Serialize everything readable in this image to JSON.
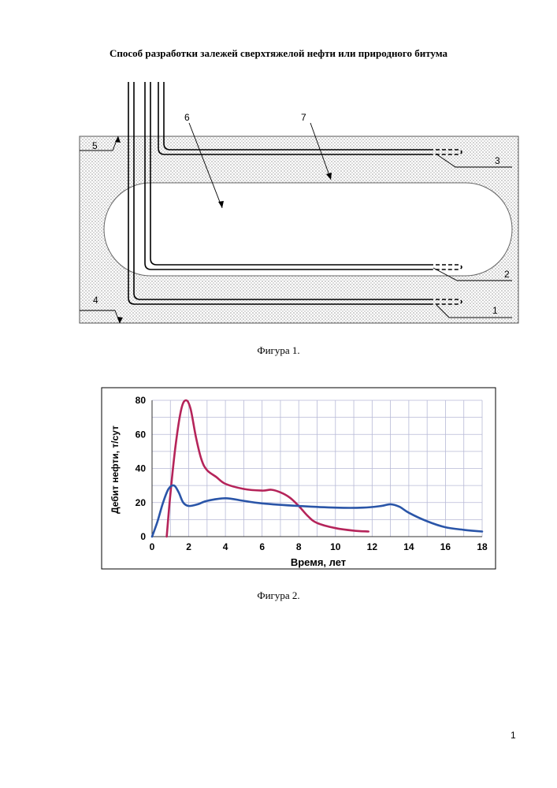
{
  "title": "Способ разработки залежей сверхтяжелой нефти или природного битума",
  "figure1": {
    "caption": "Фигура 1.",
    "labels": [
      "1",
      "2",
      "3",
      "4",
      "5",
      "6",
      "7"
    ],
    "colors": {
      "reservoir_dots": "#b8b8b8",
      "chamber": "#ffffff",
      "pipe": "#000000"
    }
  },
  "figure2": {
    "caption": "Фигура 2."
  },
  "chart_data": {
    "type": "line",
    "xlabel": "Время, лет",
    "ylabel": "Дебит нефти, т/сут",
    "xlim": [
      0,
      18
    ],
    "ylim": [
      0,
      80
    ],
    "xticks": [
      "0",
      "2",
      "4",
      "6",
      "8",
      "10",
      "12",
      "14",
      "16",
      "18"
    ],
    "yticks": [
      "0",
      "20",
      "40",
      "60",
      "80"
    ],
    "grid": true,
    "series": [
      {
        "color": "#b5245a",
        "x": [
          0.8,
          1.0,
          1.3,
          1.6,
          1.85,
          2.1,
          2.4,
          2.7,
          3.0,
          3.5,
          4.0,
          5.0,
          6.0,
          6.5,
          7.0,
          7.5,
          8.0,
          8.5,
          9.0,
          10.0,
          11.0,
          11.8
        ],
        "y": [
          0,
          25,
          55,
          75,
          80,
          75,
          58,
          45,
          39,
          35,
          31,
          28,
          27,
          27.5,
          26,
          23,
          18,
          12,
          8,
          5,
          3.5,
          3
        ]
      },
      {
        "color": "#2a55a8",
        "x": [
          0,
          0.3,
          0.6,
          0.9,
          1.2,
          1.45,
          1.7,
          2.0,
          2.5,
          3.0,
          4.0,
          5.0,
          6.0,
          8.0,
          10.0,
          11.5,
          12.5,
          13.0,
          13.5,
          14.0,
          15.0,
          16.0,
          17.0,
          18.0
        ],
        "y": [
          0,
          9,
          20,
          28,
          30,
          26,
          20,
          18,
          19,
          21,
          22.5,
          21,
          19.5,
          18,
          17,
          17,
          18,
          19,
          17.5,
          14,
          9,
          5.5,
          4,
          3
        ]
      }
    ]
  },
  "page_number": "1"
}
